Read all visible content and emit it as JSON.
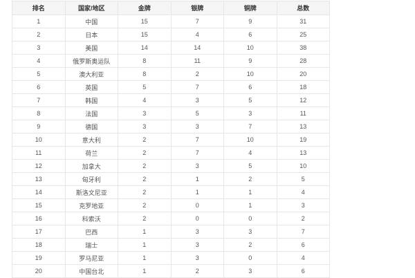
{
  "table": {
    "headers": [
      "排名",
      "国家/地区",
      "金牌",
      "银牌",
      "铜牌",
      "总数"
    ],
    "rows": [
      [
        "1",
        "中国",
        "15",
        "7",
        "9",
        "31"
      ],
      [
        "2",
        "日本",
        "15",
        "4",
        "6",
        "25"
      ],
      [
        "3",
        "美国",
        "14",
        "14",
        "10",
        "38"
      ],
      [
        "4",
        "俄罗斯奥运队",
        "8",
        "11",
        "9",
        "28"
      ],
      [
        "5",
        "澳大利亚",
        "8",
        "2",
        "10",
        "20"
      ],
      [
        "6",
        "英国",
        "5",
        "7",
        "6",
        "18"
      ],
      [
        "7",
        "韩国",
        "4",
        "3",
        "5",
        "12"
      ],
      [
        "8",
        "法国",
        "3",
        "5",
        "3",
        "11"
      ],
      [
        "9",
        "德国",
        "3",
        "3",
        "7",
        "13"
      ],
      [
        "10",
        "意大利",
        "2",
        "7",
        "10",
        "19"
      ],
      [
        "11",
        "荷兰",
        "2",
        "7",
        "4",
        "13"
      ],
      [
        "12",
        "加拿大",
        "2",
        "3",
        "5",
        "10"
      ],
      [
        "13",
        "匈牙利",
        "2",
        "1",
        "2",
        "5"
      ],
      [
        "14",
        "斯洛文尼亚",
        "2",
        "1",
        "1",
        "4"
      ],
      [
        "15",
        "克罗地亚",
        "2",
        "0",
        "1",
        "3"
      ],
      [
        "16",
        "科索沃",
        "2",
        "0",
        "0",
        "2"
      ],
      [
        "17",
        "巴西",
        "1",
        "3",
        "3",
        "7"
      ],
      [
        "18",
        "瑞士",
        "1",
        "3",
        "2",
        "6"
      ],
      [
        "19",
        "罗马尼亚",
        "1",
        "3",
        "0",
        "4"
      ],
      [
        "20",
        "中国台北",
        "1",
        "2",
        "3",
        "6"
      ]
    ]
  }
}
